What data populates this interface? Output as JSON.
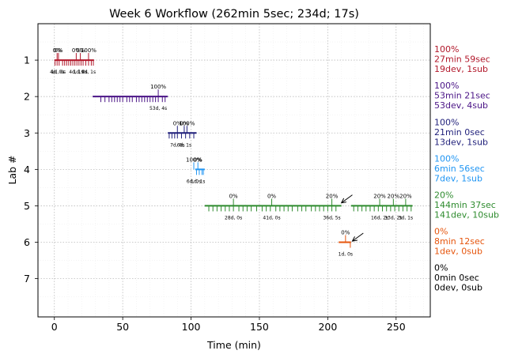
{
  "chart_data": {
    "type": "timeline",
    "title": "Week 6 Workflow (262min 5sec; 234d; 17s)",
    "xlabel": "Time (min)",
    "ylabel": "Lab #",
    "xlim": [
      -12,
      275
    ],
    "ylim": [
      8.05,
      0.0
    ],
    "xticks": [
      0,
      50,
      100,
      150,
      200,
      250
    ],
    "yticks": [
      1,
      2,
      3,
      4,
      5,
      6,
      7
    ],
    "grid": true,
    "labs": [
      {
        "lab": 1,
        "color": "#b2182b",
        "start": 0,
        "end": 29,
        "commits": [
          0.5,
          2,
          3.5,
          6,
          7.5,
          9,
          10.5,
          12,
          13.5,
          15,
          16.5,
          18,
          19.5,
          21,
          23,
          25,
          27,
          28.5
        ],
        "milestones": [
          {
            "x": 2,
            "pct": "0%",
            "stats": "4d, 0s"
          },
          {
            "x": 3,
            "pct": "0%",
            "stats": "1d, 0s"
          },
          {
            "x": 16,
            "pct": "0%",
            "stats": "4d, 1s"
          },
          {
            "x": 19,
            "pct": "0%",
            "stats": "1d, 0s"
          },
          {
            "x": 25,
            "pct": "100%",
            "stats": "9d, 1s"
          }
        ],
        "summary": [
          "100%",
          "27min 59sec",
          "19dev, 1sub"
        ]
      },
      {
        "lab": 2,
        "color": "#4a1486",
        "start": 28,
        "end": 83,
        "commits": [
          34,
          37,
          40,
          42,
          44,
          46,
          48,
          50,
          53,
          55,
          57,
          60,
          62,
          64,
          66,
          68,
          70,
          72,
          74,
          76,
          79,
          81
        ],
        "milestones": [
          {
            "x": 76,
            "pct": "100%",
            "stats": "53d, 4s"
          }
        ],
        "summary": [
          "100%",
          "53min 21sec",
          "53dev, 4sub"
        ]
      },
      {
        "lab": 3,
        "color": "#1f1f7a",
        "start": 83,
        "end": 104,
        "commits": [
          84,
          86,
          88,
          90,
          93,
          96,
          99,
          102
        ],
        "milestones": [
          {
            "x": 90,
            "pct": "0%",
            "stats": "7d, 0s"
          },
          {
            "x": 95,
            "pct": "0%",
            "stats": "6d, 1s"
          },
          {
            "x": 97,
            "pct": "100%",
            "stats": ""
          }
        ],
        "summary": [
          "100%",
          "21min 0sec",
          "13dev, 1sub"
        ]
      },
      {
        "lab": 4,
        "color": "#2196f3",
        "start": 103,
        "end": 110,
        "commits": [
          104,
          106,
          108,
          109
        ],
        "milestones": [
          {
            "x": 102,
            "pct": "100%",
            "stats": "6d, 0s"
          },
          {
            "x": 105,
            "pct": "0%",
            "stats": "1d, 1s"
          }
        ],
        "summary": [
          "100%",
          "6min 56sec",
          "7dev, 1sub"
        ]
      },
      {
        "lab": 5,
        "color": "#2e8b2e",
        "start": 110,
        "end": 262,
        "gap": [
          210,
          217
        ],
        "commits": [
          113,
          116,
          119,
          122,
          125,
          128,
          131,
          135,
          138,
          141,
          144,
          148,
          152,
          155,
          158,
          162,
          165,
          168,
          171,
          174,
          178,
          181,
          184,
          188,
          191,
          194,
          197,
          200,
          203,
          206,
          219,
          222,
          225,
          228,
          231,
          234,
          237,
          240,
          243,
          246,
          249,
          252,
          255,
          258,
          261
        ],
        "milestones": [
          {
            "x": 131,
            "pct": "0%",
            "stats": "28d, 0s"
          },
          {
            "x": 159,
            "pct": "0%",
            "stats": "41d, 0s"
          },
          {
            "x": 203,
            "pct": "20%",
            "stats": "36d, 5s"
          },
          {
            "x": 238,
            "pct": "20%",
            "stats": "16d, 2s"
          },
          {
            "x": 248,
            "pct": "20%",
            "stats": "13d, 2s"
          },
          {
            "x": 257,
            "pct": "20%",
            "stats": "3d, 1s"
          }
        ],
        "arrow": {
          "from": [
            218,
            4.7
          ],
          "to": [
            210,
            4.92
          ]
        },
        "summary": [
          "20%",
          "144min 37sec",
          "141dev, 10sub"
        ]
      },
      {
        "lab": 6,
        "color": "#e6550d",
        "start": 208,
        "end": 217,
        "commits": [
          216.5
        ],
        "milestones": [
          {
            "x": 213,
            "pct": "0%",
            "stats": "1d, 0s"
          }
        ],
        "arrow": {
          "from": [
            226,
            5.75
          ],
          "to": [
            218,
            5.97
          ]
        },
        "summary": [
          "0%",
          "8min 12sec",
          "1dev, 0sub"
        ]
      },
      {
        "lab": 7,
        "color": "#000000",
        "start": null,
        "end": null,
        "commits": [],
        "milestones": [],
        "summary": [
          "0%",
          "0min 0sec",
          "0dev, 0sub"
        ]
      }
    ]
  }
}
